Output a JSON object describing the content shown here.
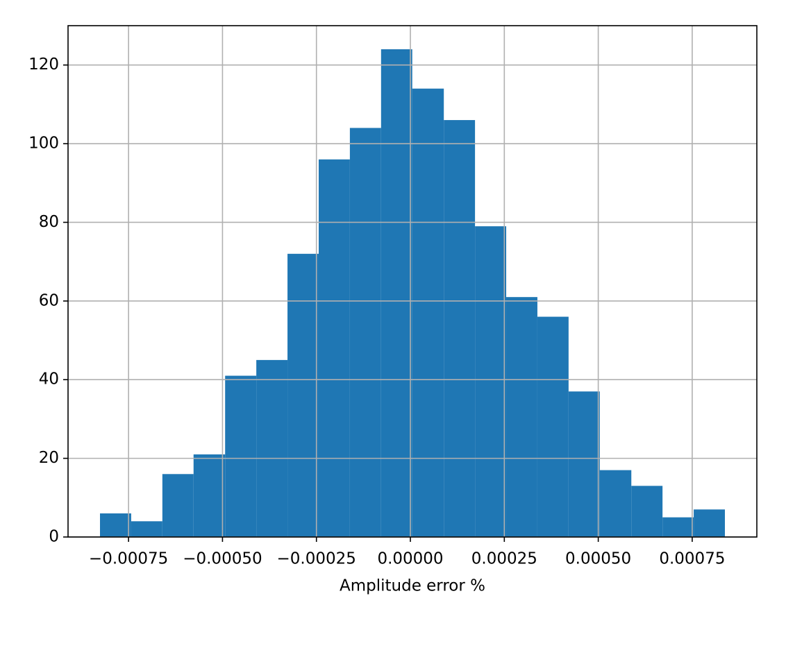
{
  "chart_data": {
    "type": "histogram",
    "xlabel": "Amplitude error %",
    "bins": [
      -0.000826,
      -0.000743,
      -0.00066,
      -0.000577,
      -0.000493,
      -0.00041,
      -0.000327,
      -0.000244,
      -0.000161,
      -7.8e-05,
      5e-06,
      8.9e-05,
      0.000172,
      0.000255,
      0.000338,
      0.000421,
      0.000504,
      0.000588,
      0.000671,
      0.000754,
      0.000837
    ],
    "values": [
      6,
      4,
      16,
      21,
      41,
      45,
      72,
      96,
      104,
      124,
      114,
      106,
      79,
      61,
      56,
      37,
      17,
      13,
      5,
      7
    ],
    "color": "#1f77b4",
    "xlim": [
      -0.000911,
      0.000922
    ],
    "ylim": [
      0,
      130
    ],
    "xticks": [
      {
        "value": -0.00075,
        "label": "−0.00075"
      },
      {
        "value": -0.0005,
        "label": "−0.00050"
      },
      {
        "value": -0.00025,
        "label": "−0.00025"
      },
      {
        "value": 0,
        "label": "0.00000"
      },
      {
        "value": 0.00025,
        "label": "0.00025"
      },
      {
        "value": 0.0005,
        "label": "0.00050"
      },
      {
        "value": 0.00075,
        "label": "0.00075"
      }
    ],
    "yticks": [
      0,
      20,
      40,
      60,
      80,
      100,
      120
    ],
    "grid": true
  }
}
